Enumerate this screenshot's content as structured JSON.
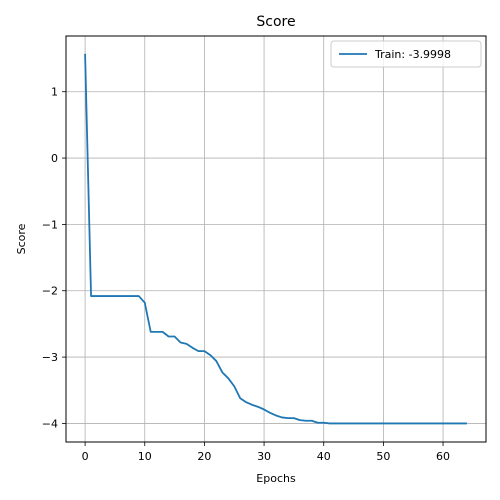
{
  "chart_data": {
    "type": "line",
    "title": "Score",
    "xlabel": "Epochs",
    "ylabel": "Score",
    "xlim": [
      -3.2,
      67.2
    ],
    "ylim": [
      -4.28,
      1.84
    ],
    "xticks": [
      0,
      10,
      20,
      30,
      40,
      50,
      60
    ],
    "yticks": [
      1,
      0,
      -1,
      -2,
      -3,
      -4
    ],
    "ytick_labels": [
      "1",
      "0",
      "−1",
      "−2",
      "−3",
      "−4"
    ],
    "grid": true,
    "legend_position": "top-right",
    "series": [
      {
        "name": "Train: -3.9998",
        "color": "#1f77b4",
        "x": [
          0,
          1,
          2,
          3,
          4,
          5,
          6,
          7,
          8,
          9,
          10,
          11,
          12,
          13,
          14,
          15,
          16,
          17,
          18,
          19,
          20,
          21,
          22,
          23,
          24,
          25,
          26,
          27,
          28,
          29,
          30,
          31,
          32,
          33,
          34,
          35,
          36,
          37,
          38,
          39,
          40,
          41,
          42,
          43,
          44,
          45,
          46,
          47,
          48,
          49,
          50,
          51,
          52,
          53,
          54,
          55,
          56,
          57,
          58,
          59,
          60,
          61,
          62,
          63,
          64
        ],
        "y": [
          1.57,
          -2.08,
          -2.08,
          -2.08,
          -2.08,
          -2.08,
          -2.08,
          -2.08,
          -2.08,
          -2.08,
          -2.18,
          -2.62,
          -2.62,
          -2.62,
          -2.69,
          -2.69,
          -2.78,
          -2.8,
          -2.86,
          -2.91,
          -2.91,
          -2.97,
          -3.06,
          -3.23,
          -3.32,
          -3.44,
          -3.62,
          -3.68,
          -3.72,
          -3.75,
          -3.79,
          -3.84,
          -3.88,
          -3.91,
          -3.92,
          -3.92,
          -3.95,
          -3.96,
          -3.96,
          -3.99,
          -3.99,
          -4.0,
          -4.0,
          -4.0,
          -4.0,
          -4.0,
          -4.0,
          -4.0,
          -4.0,
          -4.0,
          -4.0,
          -4.0,
          -4.0,
          -4.0,
          -4.0,
          -4.0,
          -4.0,
          -4.0,
          -4.0,
          -4.0,
          -4.0,
          -4.0,
          -4.0,
          -4.0,
          -4.0
        ]
      }
    ]
  }
}
